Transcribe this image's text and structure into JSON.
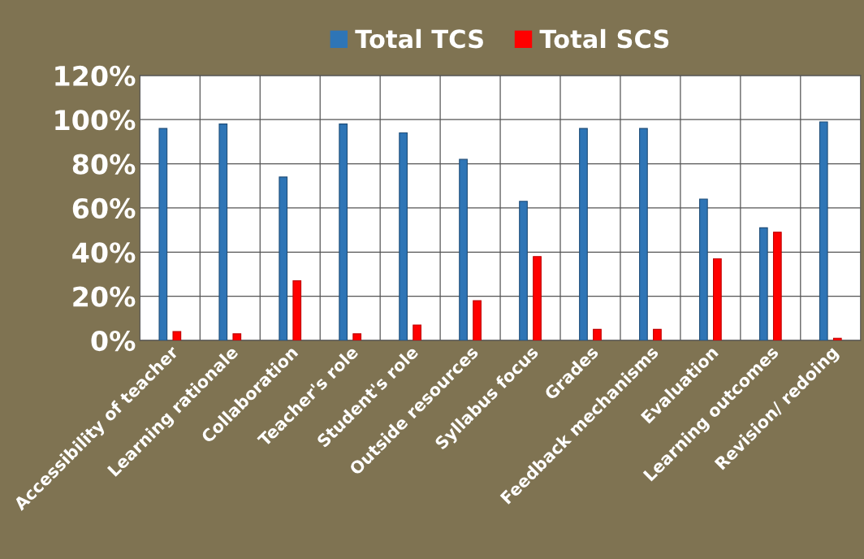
{
  "chart_data": {
    "type": "bar",
    "categories": [
      "Accessibility of teacher",
      "Learning rationale",
      "Collaboration",
      "Teacher's role",
      "Student's role",
      "Outside resources",
      "Syllabus focus",
      "Grades",
      "Feedback mechanisms",
      "Evaluation",
      "Learning outcomes",
      "Revision/ redoing"
    ],
    "series": [
      {
        "name": "Total TCS",
        "color": "#2e75b6",
        "values": [
          96,
          98,
          74,
          98,
          94,
          82,
          63,
          96,
          96,
          64,
          51,
          99
        ]
      },
      {
        "name": "Total SCS",
        "color": "#ff0000",
        "values": [
          4,
          3,
          27,
          3,
          7,
          18,
          38,
          5,
          5,
          37,
          49,
          1
        ]
      }
    ],
    "ylim": [
      0,
      120
    ],
    "yticks": [
      {
        "value": 0,
        "label": "0%"
      },
      {
        "value": 20,
        "label": "20%"
      },
      {
        "value": 40,
        "label": "40%"
      },
      {
        "value": 60,
        "label": "60%"
      },
      {
        "value": 80,
        "label": "80%"
      },
      {
        "value": 100,
        "label": "100%"
      },
      {
        "value": 120,
        "label": "120%"
      }
    ],
    "grid": true,
    "legend": "top"
  }
}
